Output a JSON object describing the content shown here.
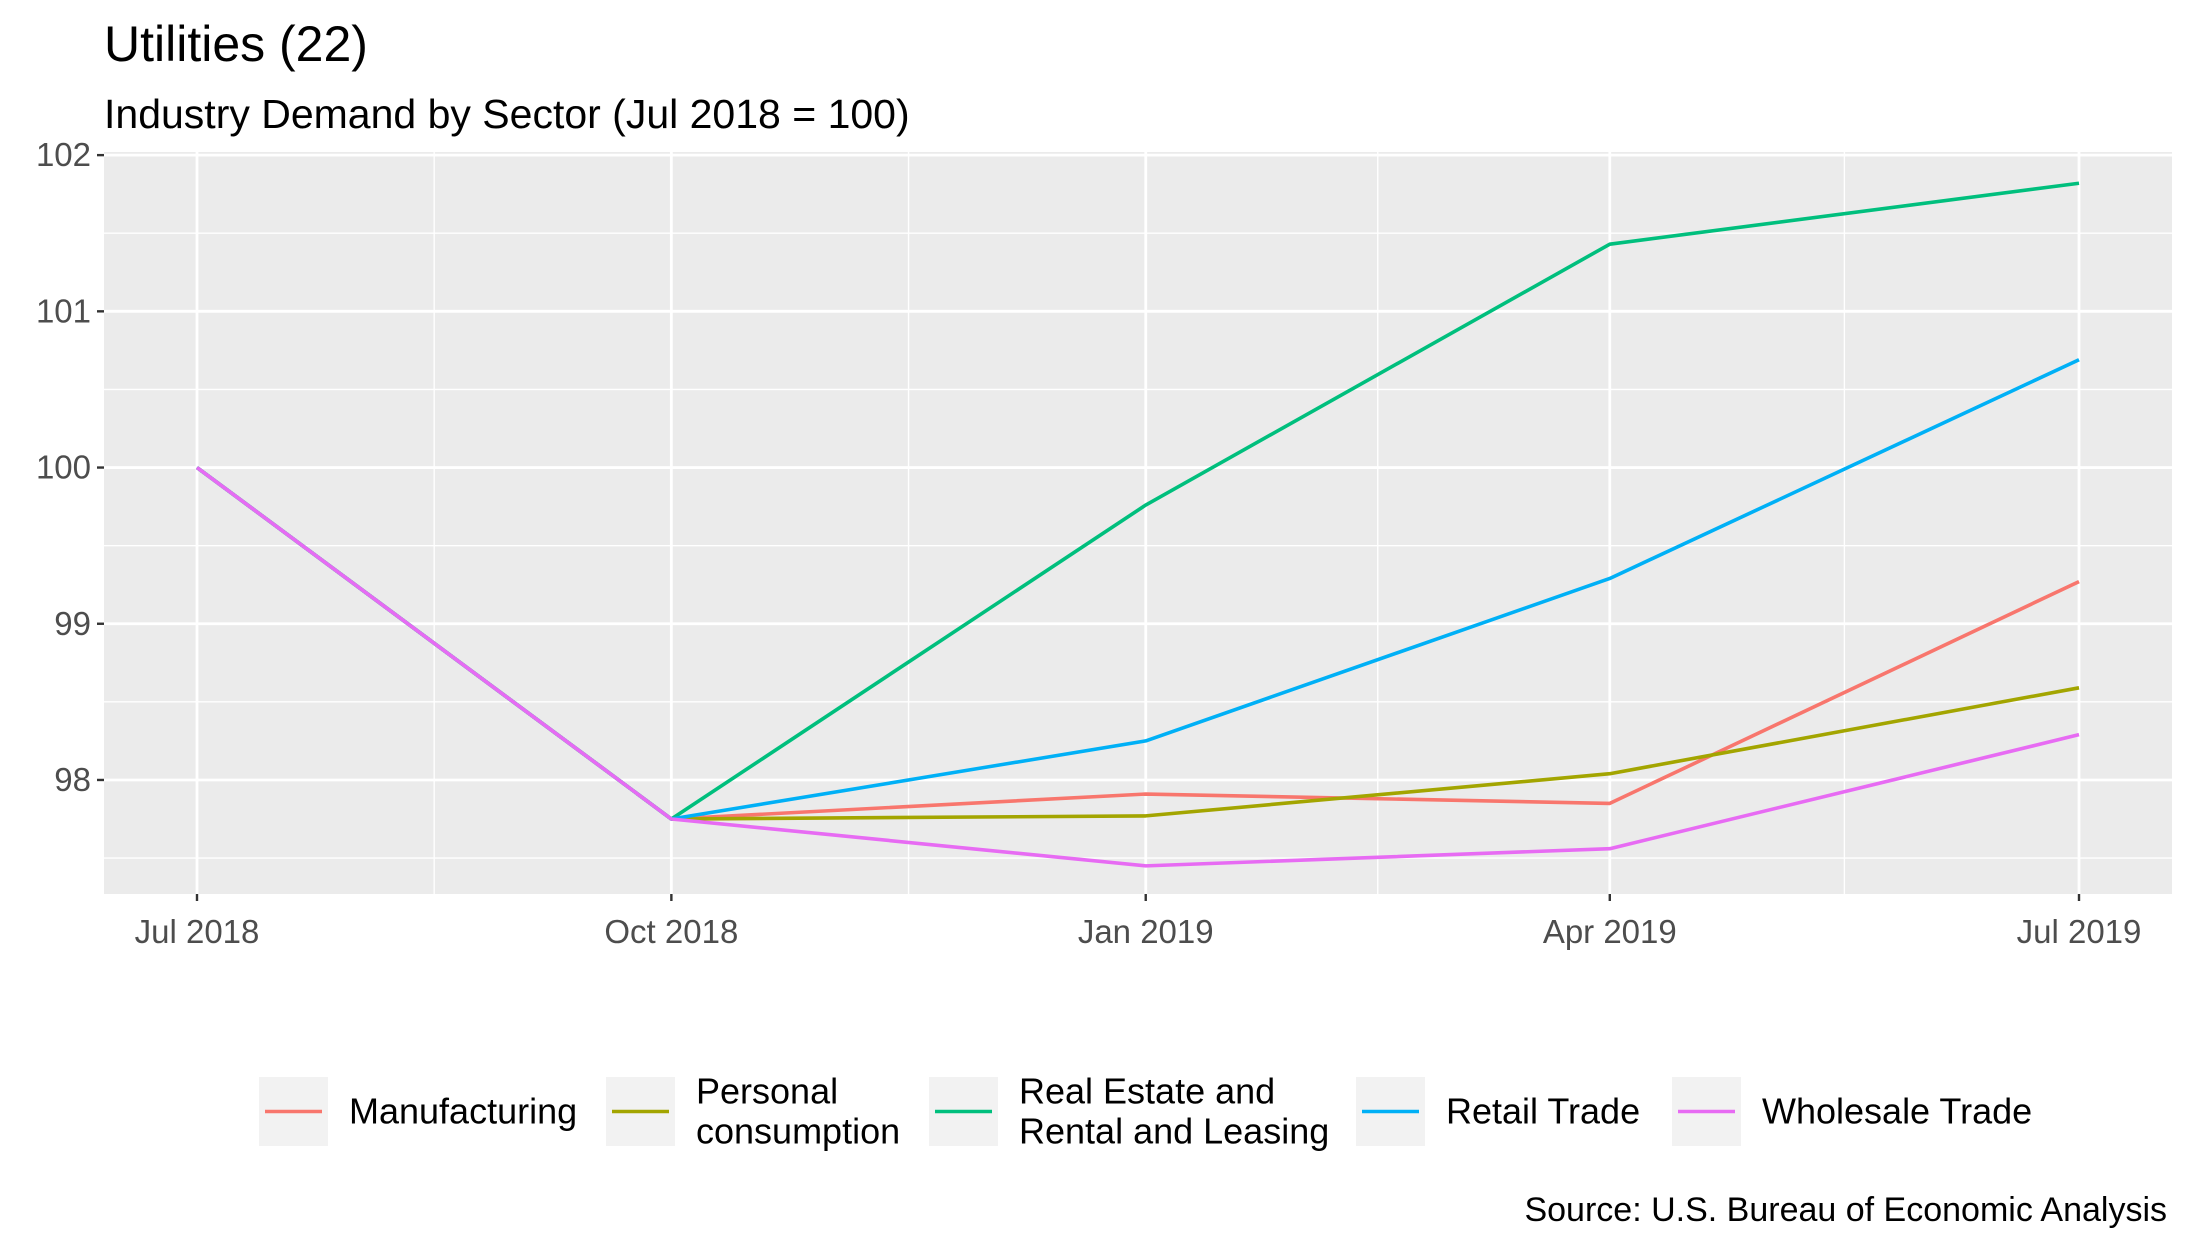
{
  "chart_data": {
    "type": "line",
    "title": "Utilities (22)",
    "subtitle": "Industry Demand by Sector (Jul 2018 = 100)",
    "caption": "Source: U.S. Bureau of Economic Analysis",
    "xlabel": "",
    "ylabel": "",
    "x": [
      "2018-07-01",
      "2018-10-01",
      "2019-01-01",
      "2019-04-01",
      "2019-07-01"
    ],
    "x_tick_labels": [
      "Jul 2018",
      "Oct 2018",
      "Jan 2019",
      "Apr 2019",
      "Jul 2019"
    ],
    "y_ticks": [
      98,
      99,
      100,
      101,
      102
    ],
    "y_tick_labels": [
      "98",
      "99",
      "100",
      "101",
      "102"
    ],
    "ylim": [
      97.27,
      102.02
    ],
    "grid": true,
    "legend_position": "bottom",
    "series": [
      {
        "name": "Manufacturing",
        "color": "#F8766D",
        "values": [
          100,
          97.75,
          97.91,
          97.85,
          99.27
        ]
      },
      {
        "name": "Personal consumption",
        "legend_lines": [
          "Personal",
          "consumption"
        ],
        "color": "#A3A500",
        "values": [
          100,
          97.75,
          97.77,
          98.04,
          98.59
        ]
      },
      {
        "name": "Real Estate and Rental and Leasing",
        "legend_lines": [
          "Real Estate and",
          "Rental and Leasing"
        ],
        "color": "#00BF7D",
        "values": [
          100,
          97.75,
          99.76,
          101.43,
          101.82
        ]
      },
      {
        "name": "Retail Trade",
        "color": "#00B0F6",
        "values": [
          100,
          97.75,
          98.25,
          99.29,
          100.69
        ]
      },
      {
        "name": "Wholesale Trade",
        "color": "#E76BF3",
        "values": [
          100,
          97.75,
          97.45,
          97.56,
          98.29
        ]
      }
    ]
  }
}
